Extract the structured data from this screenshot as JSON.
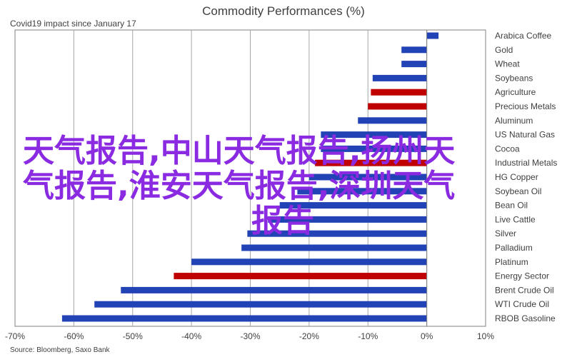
{
  "chart_data": {
    "type": "bar",
    "orientation": "horizontal",
    "title": "Commodity Performances (%)",
    "subtitle": "Covid19 impact since January 17",
    "source": "Source: Bloomberg, Saxo Bank",
    "xlim": [
      -70,
      10
    ],
    "xticks": [
      -70,
      -60,
      -50,
      -40,
      -30,
      -20,
      -10,
      0,
      10
    ],
    "xtick_labels": [
      "-70%",
      "-60%",
      "-50%",
      "-40%",
      "-30%",
      "-20%",
      "-10%",
      "0%",
      "10%"
    ],
    "grid": true,
    "colors": {
      "energy_metals": "#2243b6",
      "agriculture": "#c00000"
    },
    "categories": [
      "Arabica Coffee",
      "Gold",
      "Wheat",
      "Soybeans",
      "Agriculture",
      "Precious Metals",
      "Aluminum",
      "US Natural Gas",
      "Cocoa",
      "Industrial Metals",
      "HG Copper",
      "Soybean Oil",
      "Bean Oil",
      "Live Cattle",
      "Silver",
      "Palladium",
      "Platinum",
      "Energy Sector",
      "Brent Crude Oil",
      "WTI Crude Oil",
      "RBOB Gasoline"
    ],
    "values": [
      2,
      -4.3,
      -4.3,
      -9.2,
      -9.5,
      -10,
      -11.7,
      -18,
      -18,
      -19,
      -20,
      -22,
      -25,
      -27,
      -30.5,
      -31.5,
      -40,
      -43,
      -52,
      -56.5,
      -62
    ],
    "bar_colors": [
      "#2243b6",
      "#2243b6",
      "#2243b6",
      "#2243b6",
      "#c00000",
      "#c00000",
      "#2243b6",
      "#2243b6",
      "#2243b6",
      "#c00000",
      "#2243b6",
      "#2243b6",
      "#2243b6",
      "#2243b6",
      "#2243b6",
      "#2243b6",
      "#2243b6",
      "#c00000",
      "#2243b6",
      "#2243b6",
      "#2243b6"
    ]
  },
  "overlay": {
    "lines": [
      "天气报告,中山天气报告,扬州天",
      "气报告,淮安天气报告,深圳天气",
      "报告"
    ],
    "color": "#8a2be2"
  }
}
